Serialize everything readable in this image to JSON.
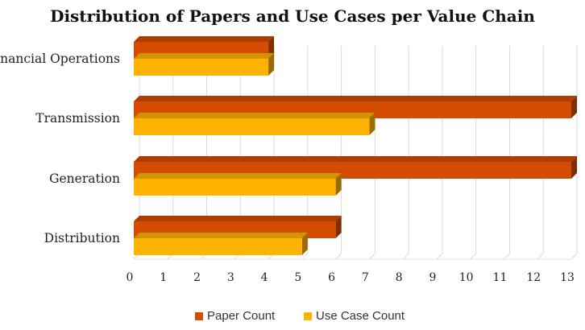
{
  "chart_data": {
    "type": "bar",
    "orientation": "horizontal",
    "title": "Distribution of Papers and Use Cases per Value Chain",
    "categories": [
      "Distribution",
      "Generation",
      "Transmission",
      "Financial Operations"
    ],
    "series": [
      {
        "name": "Paper Count",
        "values": [
          6,
          13,
          13,
          4
        ],
        "color": "#D34C00"
      },
      {
        "name": "Use Case Count",
        "values": [
          5,
          6,
          7,
          4
        ],
        "color": "#FFB300"
      }
    ],
    "xlim": [
      0,
      13
    ],
    "xticks": [
      "0",
      "1",
      "2",
      "3",
      "4",
      "5",
      "6",
      "7",
      "8",
      "9",
      "10",
      "11",
      "12",
      "13"
    ],
    "grid": true,
    "legend_position": "bottom",
    "style": "3d-bars"
  }
}
